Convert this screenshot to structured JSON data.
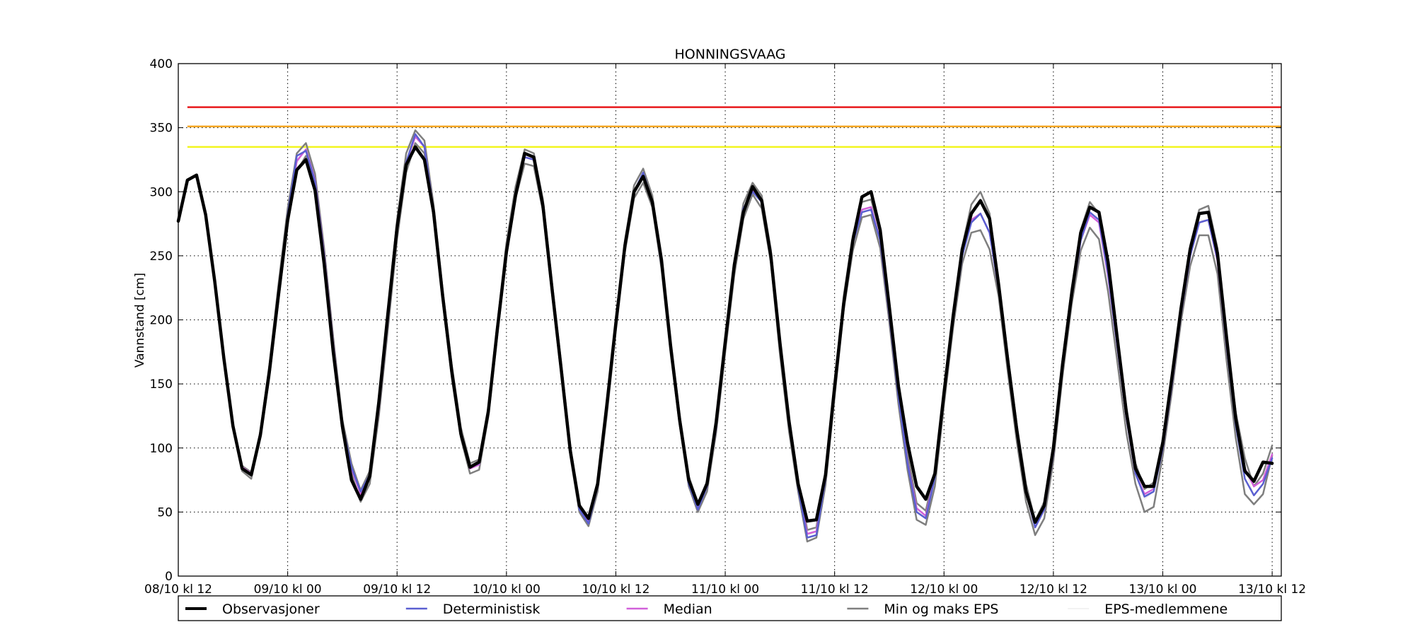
{
  "chart_data": {
    "type": "line",
    "title": "HONNINGSVAAG",
    "xlabel": "",
    "ylabel": "Vannstand [cm]",
    "ylim": [
      0,
      400
    ],
    "yticks": [
      0,
      50,
      100,
      150,
      200,
      250,
      300,
      350,
      400
    ],
    "xlim": [
      0,
      121
    ],
    "x_unit": "hours since 08/10 kl 12",
    "xticks": [
      {
        "x": 0,
        "label": "08/10 kl 12"
      },
      {
        "x": 12,
        "label": "09/10 kl 00"
      },
      {
        "x": 24,
        "label": "09/10 kl 12"
      },
      {
        "x": 36,
        "label": "10/10 kl 00"
      },
      {
        "x": 48,
        "label": "10/10 kl 12"
      },
      {
        "x": 60,
        "label": "11/10 kl 00"
      },
      {
        "x": 72,
        "label": "11/10 kl 12"
      },
      {
        "x": 84,
        "label": "12/10 kl 00"
      },
      {
        "x": 96,
        "label": "12/10 kl 12"
      },
      {
        "x": 108,
        "label": "13/10 kl 00"
      },
      {
        "x": 120,
        "label": "13/10 kl 12"
      }
    ],
    "grid": true,
    "legend_placement": "bottom",
    "threshold_lines": [
      {
        "value": 366,
        "color": "#e8191c",
        "x_start": 1
      },
      {
        "value": 351,
        "color": "#f5a623",
        "x_start": 1
      },
      {
        "value": 335,
        "color": "#f2f51f",
        "x_start": 1
      }
    ],
    "series": [
      {
        "name": "EPS-medlemmene",
        "color": "#e6e6e6",
        "width": 1,
        "x_start": 0,
        "values": [
          277,
          309,
          313,
          282,
          230,
          170,
          117,
          85,
          80,
          112,
          160,
          220,
          280,
          322,
          334,
          310,
          250,
          180,
          117,
          84,
          63,
          77,
          132,
          200,
          270,
          322,
          345,
          338,
          286,
          220,
          160,
          112,
          84,
          87,
          128,
          192,
          255,
          300,
          327,
          325,
          290,
          225,
          163,
          98,
          53,
          43,
          70,
          130,
          196,
          258,
          300,
          312,
          292,
          244,
          178,
          122,
          74,
          54,
          70,
          116,
          180,
          240,
          285,
          303,
          292,
          250,
          178,
          118,
          70,
          32,
          34,
          76,
          145,
          213,
          260,
          285,
          288,
          262,
          204,
          140,
          89,
          51,
          46,
          76,
          140,
          200,
          250,
          280,
          295,
          278,
          224,
          165,
          110,
          65,
          38,
          52,
          96,
          162,
          218,
          262,
          284,
          276,
          234,
          180,
          124,
          80,
          60,
          66,
          100,
          150,
          205,
          250,
          278,
          278,
          248,
          180,
          120,
          84,
          63,
          71,
          94
        ]
      },
      {
        "name": "Min og maks EPS",
        "color": "#7f7f7f",
        "width": 2.5,
        "x_start": 0,
        "values": [
          277,
          309,
          313,
          282,
          230,
          170,
          117,
          86,
          81,
          113,
          165,
          228,
          287,
          330,
          338,
          314,
          256,
          186,
          122,
          88,
          67,
          82,
          138,
          208,
          278,
          330,
          348,
          340,
          290,
          224,
          165,
          116,
          88,
          91,
          132,
          197,
          260,
          304,
          333,
          330,
          294,
          229,
          167,
          102,
          56,
          45,
          73,
          134,
          200,
          262,
          305,
          318,
          297,
          248,
          183,
          126,
          78,
          57,
          74,
          121,
          185,
          246,
          291,
          307,
          297,
          255,
          184,
          124,
          75,
          36,
          38,
          81,
          151,
          219,
          266,
          292,
          294,
          268,
          210,
          146,
          95,
          57,
          51,
          82,
          146,
          206,
          257,
          290,
          300,
          283,
          230,
          172,
          117,
          72,
          43,
          58,
          103,
          169,
          225,
          270,
          292,
          283,
          241,
          187,
          132,
          88,
          68,
          73,
          107,
          157,
          212,
          258,
          286,
          289,
          256,
          188,
          128,
          92,
          70,
          80,
          102
        ]
      },
      {
        "name": "Min og maks EPS",
        "color": "#7f7f7f",
        "width": 2.5,
        "x_start": 0,
        "values": [
          277,
          309,
          313,
          282,
          230,
          170,
          117,
          82,
          76,
          108,
          155,
          215,
          274,
          316,
          328,
          304,
          245,
          175,
          113,
          80,
          58,
          72,
          125,
          193,
          263,
          315,
          338,
          330,
          280,
          215,
          155,
          108,
          80,
          83,
          124,
          188,
          250,
          295,
          322,
          320,
          285,
          220,
          158,
          94,
          50,
          39,
          66,
          125,
          191,
          253,
          295,
          307,
          288,
          240,
          174,
          118,
          70,
          50,
          66,
          112,
          175,
          235,
          279,
          298,
          287,
          245,
          173,
          113,
          66,
          27,
          30,
          71,
          140,
          208,
          254,
          280,
          282,
          256,
          198,
          134,
          83,
          44,
          40,
          70,
          134,
          194,
          244,
          268,
          270,
          255,
          218,
          159,
          104,
          58,
          32,
          45,
          90,
          156,
          212,
          254,
          272,
          263,
          222,
          168,
          112,
          72,
          50,
          54,
          94,
          144,
          199,
          242,
          266,
          266,
          236,
          168,
          108,
          64,
          56,
          64,
          94
        ]
      },
      {
        "name": "Median",
        "color": "#d160d9",
        "width": 2.5,
        "x_start": 0,
        "values": [
          277,
          309,
          313,
          282,
          230,
          170,
          117,
          85,
          80,
          112,
          162,
          222,
          281,
          324,
          333,
          309,
          251,
          181,
          118,
          84,
          64,
          78,
          131,
          200,
          270,
          323,
          343,
          335,
          285,
          219,
          160,
          112,
          84,
          87,
          128,
          193,
          255,
          299,
          327,
          325,
          289,
          224,
          162,
          98,
          53,
          42,
          70,
          130,
          196,
          257,
          300,
          313,
          292,
          244,
          178,
          121,
          74,
          53,
          70,
          116,
          180,
          241,
          285,
          302,
          292,
          250,
          179,
          118,
          70,
          33,
          35,
          76,
          146,
          213,
          260,
          286,
          288,
          262,
          204,
          141,
          89,
          53,
          47,
          78,
          140,
          200,
          251,
          278,
          283,
          268,
          224,
          166,
          110,
          66,
          38,
          52,
          96,
          162,
          218,
          262,
          282,
          276,
          234,
          180,
          124,
          80,
          64,
          68,
          100,
          150,
          205,
          250,
          276,
          278,
          246,
          180,
          120,
          84,
          70,
          75,
          95
        ]
      },
      {
        "name": "Deterministisk",
        "color": "#5a5fd1",
        "width": 2.5,
        "x_start": 0,
        "values": [
          277,
          309,
          313,
          282,
          230,
          170,
          117,
          84,
          79,
          111,
          162,
          222,
          282,
          328,
          332,
          308,
          250,
          180,
          118,
          85,
          66,
          79,
          132,
          200,
          270,
          323,
          345,
          335,
          285,
          219,
          159,
          112,
          85,
          88,
          128,
          193,
          255,
          299,
          327,
          325,
          289,
          223,
          162,
          97,
          52,
          41,
          70,
          131,
          197,
          257,
          300,
          315,
          292,
          243,
          177,
          121,
          72,
          52,
          70,
          116,
          181,
          241,
          287,
          300,
          292,
          250,
          179,
          118,
          69,
          30,
          32,
          76,
          146,
          213,
          260,
          284,
          286,
          262,
          204,
          140,
          88,
          50,
          45,
          77,
          140,
          200,
          250,
          276,
          283,
          268,
          224,
          166,
          110,
          66,
          38,
          52,
          96,
          162,
          218,
          262,
          284,
          278,
          236,
          180,
          124,
          80,
          62,
          66,
          100,
          150,
          205,
          250,
          276,
          278,
          247,
          180,
          118,
          76,
          63,
          72,
          92
        ]
      },
      {
        "name": "Observasjoner",
        "color": "#000000",
        "width": 4.5,
        "x_start": 0,
        "values": [
          277,
          309,
          313,
          282,
          230,
          170,
          117,
          84,
          79,
          110,
          160,
          220,
          278,
          317,
          325,
          301,
          244,
          175,
          117,
          75,
          60,
          78,
          136,
          205,
          272,
          321,
          335,
          325,
          284,
          219,
          160,
          111,
          85,
          89,
          128,
          193,
          253,
          297,
          330,
          327,
          289,
          224,
          162,
          98,
          55,
          45,
          72,
          133,
          197,
          258,
          300,
          312,
          292,
          247,
          180,
          122,
          75,
          56,
          72,
          120,
          183,
          243,
          284,
          304,
          293,
          250,
          182,
          121,
          72,
          43,
          44,
          79,
          148,
          213,
          262,
          296,
          300,
          270,
          210,
          148,
          104,
          70,
          60,
          80,
          143,
          203,
          255,
          283,
          293,
          279,
          227,
          168,
          113,
          66,
          42,
          55,
          100,
          165,
          220,
          268,
          288,
          284,
          245,
          186,
          128,
          84,
          70,
          70,
          104,
          155,
          209,
          255,
          283,
          284,
          252,
          186,
          123,
          82,
          74,
          89,
          88
        ]
      }
    ],
    "legend": [
      {
        "label": "Observasjoner",
        "color": "#000000",
        "width": 4
      },
      {
        "label": "Deterministisk",
        "color": "#5a5fd1",
        "width": 2.5
      },
      {
        "label": "Median",
        "color": "#d160d9",
        "width": 2.5
      },
      {
        "label": "Min og maks EPS",
        "color": "#7f7f7f",
        "width": 2.5
      },
      {
        "label": "EPS-medlemmene",
        "color": "#e6e6e6",
        "width": 1
      }
    ]
  }
}
